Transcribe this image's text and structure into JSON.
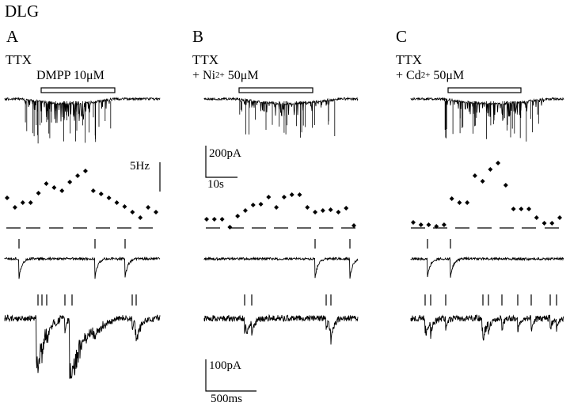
{
  "figure": {
    "title": "DLG",
    "panels": [
      {
        "letter": "A",
        "condition": "TTX",
        "drug_prefix": "",
        "drug_ion": "",
        "drug_charge": "",
        "drug_name": "DMPP",
        "drug_conc": "10μM"
      },
      {
        "letter": "B",
        "condition": "TTX",
        "drug_prefix": "+ ",
        "drug_ion": "Ni",
        "drug_charge": "2+",
        "drug_name": "",
        "drug_conc": "50μM"
      },
      {
        "letter": "C",
        "condition": "TTX",
        "drug_prefix": "+ ",
        "drug_ion": "Cd",
        "drug_charge": "2+",
        "drug_name": "",
        "drug_conc": "50μM"
      }
    ],
    "scale_bars": {
      "current_top": "200pA",
      "time_top": "10s",
      "frequency": "5Hz",
      "current_bottom": "100pA",
      "time_bottom": "500ms"
    }
  },
  "chart_data": [
    {
      "type": "scatter",
      "panel": "A",
      "quantity": "event frequency",
      "values": [
        1.3,
        0.9,
        1.3,
        1.3,
        1.7,
        4.3,
        3.9,
        3.5,
        4.4,
        5.1,
        5.5,
        3.5,
        3.2,
        2.8,
        2.2,
        1.8,
        1.2,
        0.9,
        1.6,
        1.2
      ]
    },
    {
      "type": "scatter",
      "panel": "B",
      "quantity": "event frequency",
      "values": [
        0.6,
        0.6,
        0.6,
        0.0,
        0.9,
        1.4,
        1.8,
        1.9,
        2.4,
        1.6,
        2.4,
        2.6,
        2.6,
        1.6,
        1.2,
        1.3,
        1.4,
        1.2,
        1.5,
        0.2
      ]
    },
    {
      "type": "scatter",
      "panel": "C",
      "quantity": "event frequency",
      "values": [
        0.4,
        0.1,
        0.1,
        0.0,
        0.1,
        2.4,
        2.1,
        2.1,
        4.1,
        3.6,
        4.6,
        5.1,
        3.5,
        1.7,
        1.7,
        1.7,
        1.0,
        0.4,
        0.4,
        1.0
      ]
    }
  ]
}
